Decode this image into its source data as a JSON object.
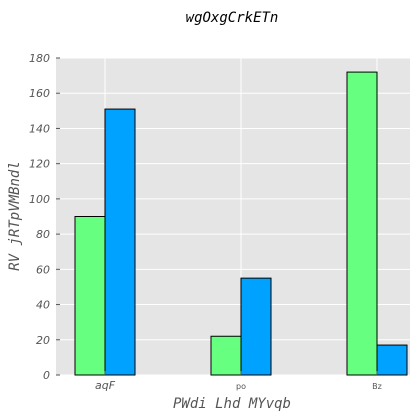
{
  "chart_data": {
    "type": "bar",
    "title": "wgOxgCrkETn",
    "xlabel": "PWdi Lhd MYvqb",
    "ylabel": "RV jRTpVMBndl",
    "categories": [
      "aqF",
      "po",
      "Bz"
    ],
    "series": [
      {
        "values": [
          90,
          22,
          172
        ]
      },
      {
        "values": [
          151,
          55,
          17
        ]
      }
    ],
    "ylim": [
      0,
      180
    ],
    "yticks": [
      0,
      20,
      40,
      60,
      80,
      100,
      120,
      140,
      160,
      180
    ],
    "grid": true,
    "colors": {
      "series": [
        "#66ff7f",
        "#00a2ff"
      ],
      "plot_background": "#e5e5e5",
      "grid": "#ffffff",
      "bar_edge": "#000000"
    }
  }
}
